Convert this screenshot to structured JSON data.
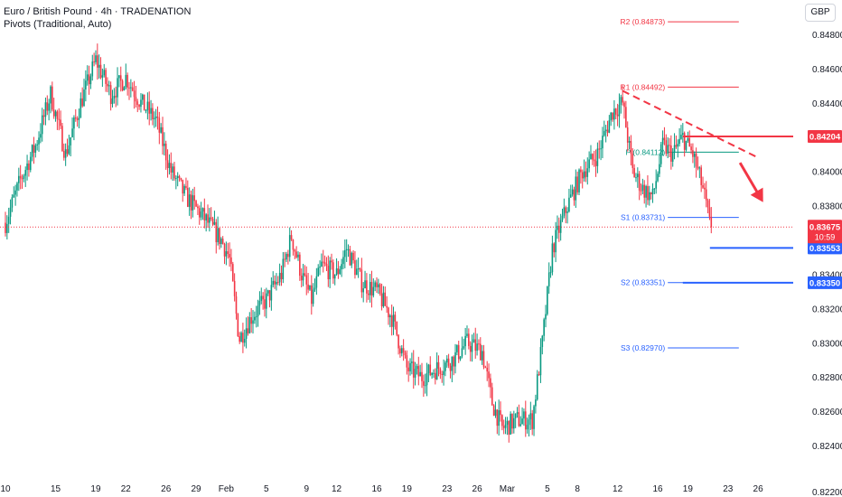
{
  "header": {
    "title": "Euro / British Pound · 4h · TRADENATION",
    "subtitle": "Pivots (Traditional, Auto)",
    "currency": "GBP"
  },
  "colors": {
    "up": "#089981",
    "down": "#f23645",
    "pivot_resistance": "#f23645",
    "pivot_support": "#2962ff",
    "pivot_p": "#089981",
    "current_price_line": "#f23645",
    "blue_level": "#2962ff"
  },
  "chart_data": {
    "type": "candlestick",
    "ylim": [
      0.822,
      0.85
    ],
    "y_ticks": [
      0.824,
      0.826,
      0.828,
      0.83,
      0.832,
      0.834,
      0.836,
      0.838,
      0.84,
      0.842,
      0.844,
      0.846,
      0.848
    ],
    "y_tick_labels": [
      "0.82400",
      "0.82600",
      "0.82800",
      "0.83000",
      "0.83200",
      "0.83400",
      "0.83600",
      "0.83800",
      "0.84000",
      "0.84200",
      "0.84400",
      "0.84600",
      "0.84800"
    ],
    "y_bottom_label": "0.82200",
    "x_ticks": [
      {
        "label": "10",
        "day": 0
      },
      {
        "label": "15",
        "day": 5
      },
      {
        "label": "19",
        "day": 9
      },
      {
        "label": "22",
        "day": 12
      },
      {
        "label": "26",
        "day": 16
      },
      {
        "label": "29",
        "day": 19
      },
      {
        "label": "Feb",
        "day": 22
      },
      {
        "label": "5",
        "day": 26
      },
      {
        "label": "9",
        "day": 30
      },
      {
        "label": "12",
        "day": 33
      },
      {
        "label": "16",
        "day": 37
      },
      {
        "label": "19",
        "day": 40
      },
      {
        "label": "23",
        "day": 44
      },
      {
        "label": "26",
        "day": 47
      },
      {
        "label": "Mar",
        "day": 50
      },
      {
        "label": "5",
        "day": 54
      },
      {
        "label": "8",
        "day": 57
      },
      {
        "label": "12",
        "day": 61
      },
      {
        "label": "16",
        "day": 65
      },
      {
        "label": "19",
        "day": 68
      },
      {
        "label": "23",
        "day": 72
      },
      {
        "label": "26",
        "day": 75
      }
    ],
    "x_range_days": [
      0,
      78.5
    ],
    "waypoints": [
      [
        0,
        0.837
      ],
      [
        1.5,
        0.8395
      ],
      [
        3,
        0.8415
      ],
      [
        4.5,
        0.8445
      ],
      [
        6,
        0.841
      ],
      [
        7.5,
        0.844
      ],
      [
        9,
        0.8465
      ],
      [
        10.5,
        0.8445
      ],
      [
        12,
        0.8455
      ],
      [
        13.5,
        0.844
      ],
      [
        15,
        0.843
      ],
      [
        16.5,
        0.84
      ],
      [
        18,
        0.8385
      ],
      [
        19.5,
        0.8375
      ],
      [
        21.5,
        0.836
      ],
      [
        22.3,
        0.835
      ],
      [
        23.3,
        0.8302
      ],
      [
        24.5,
        0.8315
      ],
      [
        26,
        0.8325
      ],
      [
        27.5,
        0.834
      ],
      [
        28.5,
        0.8362
      ],
      [
        29.5,
        0.834
      ],
      [
        30.5,
        0.8325
      ],
      [
        31.5,
        0.8345
      ],
      [
        33,
        0.834
      ],
      [
        34,
        0.8355
      ],
      [
        35.5,
        0.8335
      ],
      [
        37,
        0.833
      ],
      [
        38.5,
        0.8315
      ],
      [
        40,
        0.8285
      ],
      [
        41.5,
        0.828
      ],
      [
        43,
        0.8285
      ],
      [
        44.5,
        0.829
      ],
      [
        46,
        0.83
      ],
      [
        47.5,
        0.8295
      ],
      [
        48.5,
        0.8265
      ],
      [
        49.5,
        0.825
      ],
      [
        51,
        0.8255
      ],
      [
        52.5,
        0.8255
      ],
      [
        53.5,
        0.83
      ],
      [
        54.5,
        0.8355
      ],
      [
        56,
        0.838
      ],
      [
        57.5,
        0.84
      ],
      [
        59,
        0.841
      ],
      [
        60.5,
        0.8435
      ],
      [
        61.5,
        0.844
      ],
      [
        62.5,
        0.84
      ],
      [
        63.5,
        0.839
      ],
      [
        64.5,
        0.8385
      ],
      [
        65.5,
        0.8415
      ],
      [
        66.5,
        0.841
      ],
      [
        67.5,
        0.842
      ],
      [
        68.5,
        0.841
      ],
      [
        69.5,
        0.839
      ],
      [
        70.4,
        0.8362
      ]
    ],
    "last_price": 0.83675,
    "last_price_label": "0.83675",
    "countdown": "10:59",
    "pivots": [
      {
        "label": "R2 (0.84873)",
        "value": 0.84873,
        "kind": "resistance"
      },
      {
        "label": "R1 (0.84492)",
        "value": 0.84492,
        "kind": "resistance"
      },
      {
        "label": "P (0.84112)",
        "value": 0.84112,
        "kind": "pivot"
      },
      {
        "label": "S1 (0.83731)",
        "value": 0.83731,
        "kind": "support"
      },
      {
        "label": "S2 (0.83351)",
        "value": 0.83351,
        "kind": "support"
      },
      {
        "label": "S3 (0.82970)",
        "value": 0.8297,
        "kind": "support"
      }
    ],
    "pivot_day_range": [
      61.5,
      72
    ],
    "price_badges": [
      {
        "label": "0.84204",
        "value": 0.84204,
        "color": "#f23645"
      },
      {
        "label": "0.83553",
        "value": 0.83553,
        "color": "#2962ff"
      },
      {
        "label": "0.83350",
        "value": 0.8335,
        "color": "#2962ff"
      }
    ],
    "horizontal_levels": [
      {
        "value": 0.84204,
        "from_day": 67.5,
        "color": "#f23645",
        "width": 2
      },
      {
        "value": 0.83553,
        "from_day": 70.2,
        "color": "#2962ff",
        "width": 2
      },
      {
        "value": 0.8335,
        "from_day": 67.5,
        "color": "#2962ff",
        "width": 2
      }
    ],
    "trendline": {
      "from": [
        61.5,
        0.8447
      ],
      "to": [
        75,
        0.8408
      ],
      "color": "#f23645",
      "dashed": true
    },
    "arrow": {
      "from": [
        73.2,
        0.8405
      ],
      "to": [
        75.5,
        0.8382
      ],
      "color": "#f23645"
    }
  }
}
